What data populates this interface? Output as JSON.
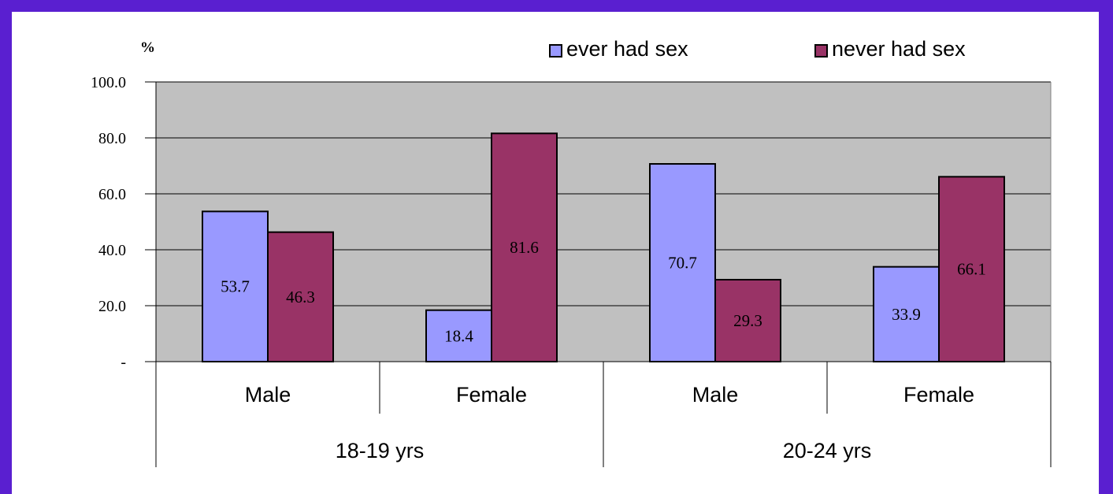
{
  "chart_data": {
    "type": "bar",
    "ylabel": "%",
    "ylim": [
      0,
      100
    ],
    "y_ticks": [
      "-",
      "20.0",
      "40.0",
      "60.0",
      "80.0",
      "100.0"
    ],
    "categories": [
      "Male",
      "Female",
      "Male",
      "Female"
    ],
    "groups": [
      {
        "label": "18-19 yrs",
        "categories": [
          "Male",
          "Female"
        ]
      },
      {
        "label": "20-24 yrs",
        "categories": [
          "Male",
          "Female"
        ]
      }
    ],
    "series": [
      {
        "name": "ever had sex",
        "color": "#9999ff",
        "values": [
          53.7,
          18.4,
          70.7,
          33.9
        ]
      },
      {
        "name": "never had sex",
        "color": "#993366",
        "values": [
          46.3,
          81.6,
          29.3,
          66.1
        ]
      }
    ],
    "plot_background": "#c0c0c0",
    "gridlines": true,
    "legend_position": "top-right"
  }
}
